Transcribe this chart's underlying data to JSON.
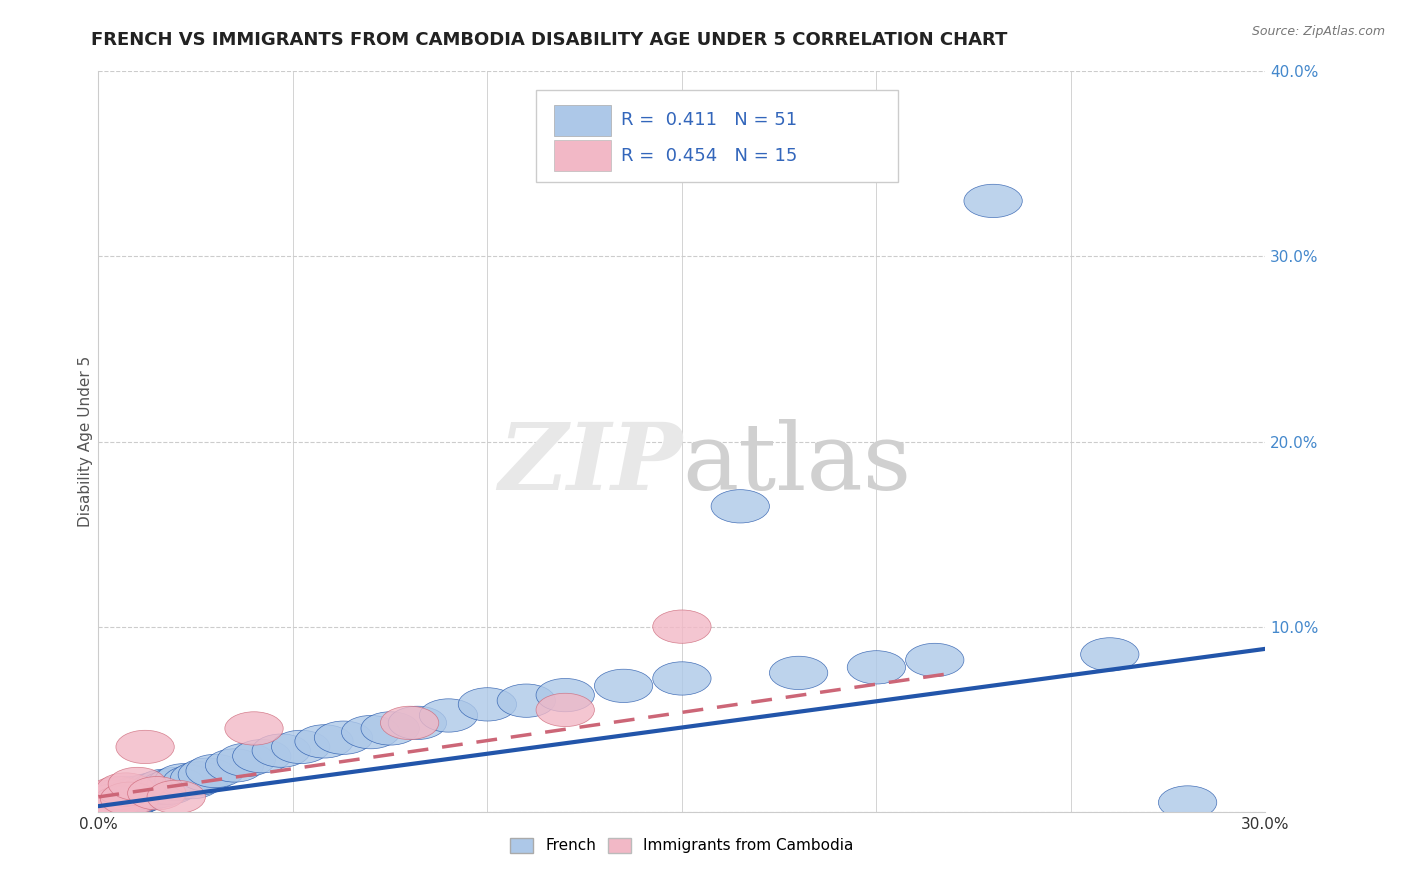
{
  "title": "FRENCH VS IMMIGRANTS FROM CAMBODIA DISABILITY AGE UNDER 5 CORRELATION CHART",
  "source": "Source: ZipAtlas.com",
  "ylabel": "Disability Age Under 5",
  "xlim": [
    0.0,
    0.3
  ],
  "ylim": [
    0.0,
    0.4
  ],
  "xticks": [
    0.0,
    0.05,
    0.1,
    0.15,
    0.2,
    0.25,
    0.3
  ],
  "yticks": [
    0.0,
    0.1,
    0.2,
    0.3,
    0.4
  ],
  "french_color": "#adc8e8",
  "cambodia_color": "#f2b8c6",
  "french_line_color": "#2255aa",
  "cambodia_line_color": "#cc6677",
  "french_R": 0.411,
  "french_N": 51,
  "cambodia_R": 0.454,
  "cambodia_N": 15,
  "background_color": "#ffffff",
  "grid_color": "#cccccc",
  "title_color": "#222222",
  "axis_label_color": "#555555",
  "ytick_color": "#4488cc",
  "title_fontsize": 13,
  "label_fontsize": 11,
  "tick_fontsize": 11,
  "french_x": [
    0.002,
    0.003,
    0.004,
    0.005,
    0.005,
    0.006,
    0.007,
    0.007,
    0.008,
    0.008,
    0.009,
    0.009,
    0.01,
    0.01,
    0.011,
    0.012,
    0.013,
    0.014,
    0.015,
    0.016,
    0.017,
    0.018,
    0.02,
    0.022,
    0.024,
    0.026,
    0.028,
    0.03,
    0.035,
    0.038,
    0.042,
    0.047,
    0.052,
    0.058,
    0.063,
    0.07,
    0.075,
    0.082,
    0.09,
    0.1,
    0.11,
    0.12,
    0.135,
    0.15,
    0.165,
    0.18,
    0.2,
    0.215,
    0.23,
    0.26,
    0.28
  ],
  "french_y": [
    0.003,
    0.005,
    0.004,
    0.006,
    0.008,
    0.005,
    0.007,
    0.01,
    0.006,
    0.008,
    0.007,
    0.009,
    0.008,
    0.01,
    0.009,
    0.011,
    0.01,
    0.012,
    0.011,
    0.013,
    0.014,
    0.013,
    0.015,
    0.017,
    0.016,
    0.018,
    0.02,
    0.022,
    0.025,
    0.028,
    0.03,
    0.033,
    0.035,
    0.038,
    0.04,
    0.043,
    0.045,
    0.048,
    0.052,
    0.058,
    0.06,
    0.063,
    0.068,
    0.072,
    0.165,
    0.075,
    0.078,
    0.082,
    0.33,
    0.085,
    0.005
  ],
  "cambodia_x": [
    0.002,
    0.003,
    0.004,
    0.005,
    0.006,
    0.007,
    0.008,
    0.01,
    0.012,
    0.015,
    0.02,
    0.04,
    0.08,
    0.12,
    0.15
  ],
  "cambodia_y": [
    0.003,
    0.008,
    0.006,
    0.01,
    0.005,
    0.012,
    0.007,
    0.015,
    0.035,
    0.01,
    0.008,
    0.045,
    0.048,
    0.055,
    0.1
  ],
  "french_line_x0": 0.0,
  "french_line_y0": 0.003,
  "french_line_x1": 0.3,
  "french_line_y1": 0.088,
  "cambodia_line_x0": 0.0,
  "cambodia_line_y0": 0.008,
  "cambodia_line_x1": 0.22,
  "cambodia_line_y1": 0.075
}
